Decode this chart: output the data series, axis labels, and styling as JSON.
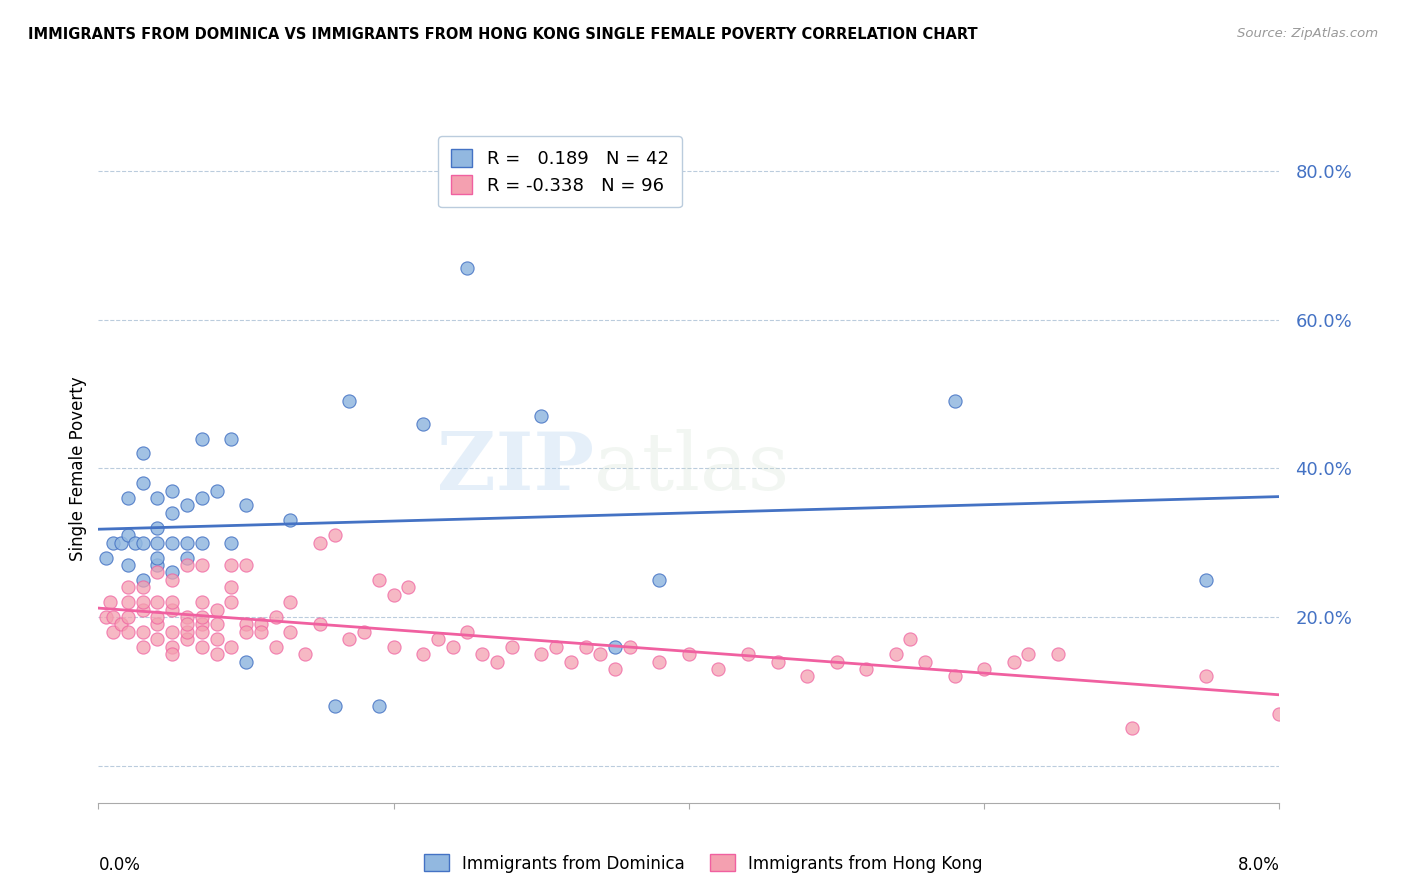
{
  "title": "IMMIGRANTS FROM DOMINICA VS IMMIGRANTS FROM HONG KONG SINGLE FEMALE POVERTY CORRELATION CHART",
  "source": "Source: ZipAtlas.com",
  "ylabel": "Single Female Poverty",
  "xlim": [
    0.0,
    0.08
  ],
  "ylim": [
    -0.05,
    0.85
  ],
  "dominica_R": 0.189,
  "dominica_N": 42,
  "hongkong_R": -0.338,
  "hongkong_N": 96,
  "dominica_color": "#92B8E0",
  "hongkong_color": "#F4A0B0",
  "dominica_line_color": "#4472C4",
  "hongkong_line_color": "#F060A0",
  "dominica_x": [
    0.0005,
    0.001,
    0.0015,
    0.002,
    0.002,
    0.002,
    0.0025,
    0.003,
    0.003,
    0.003,
    0.003,
    0.004,
    0.004,
    0.004,
    0.004,
    0.004,
    0.005,
    0.005,
    0.005,
    0.005,
    0.006,
    0.006,
    0.006,
    0.007,
    0.007,
    0.007,
    0.008,
    0.009,
    0.009,
    0.01,
    0.01,
    0.013,
    0.016,
    0.017,
    0.019,
    0.022,
    0.025,
    0.03,
    0.035,
    0.038,
    0.058,
    0.075
  ],
  "dominica_y": [
    0.28,
    0.3,
    0.3,
    0.27,
    0.31,
    0.36,
    0.3,
    0.25,
    0.3,
    0.38,
    0.42,
    0.27,
    0.32,
    0.36,
    0.3,
    0.28,
    0.26,
    0.34,
    0.3,
    0.37,
    0.28,
    0.35,
    0.3,
    0.36,
    0.44,
    0.3,
    0.37,
    0.44,
    0.3,
    0.35,
    0.14,
    0.33,
    0.08,
    0.49,
    0.08,
    0.46,
    0.67,
    0.47,
    0.16,
    0.25,
    0.49,
    0.25
  ],
  "hongkong_x": [
    0.0005,
    0.0008,
    0.001,
    0.001,
    0.0015,
    0.002,
    0.002,
    0.002,
    0.002,
    0.003,
    0.003,
    0.003,
    0.003,
    0.003,
    0.004,
    0.004,
    0.004,
    0.004,
    0.004,
    0.005,
    0.005,
    0.005,
    0.005,
    0.005,
    0.005,
    0.006,
    0.006,
    0.006,
    0.006,
    0.006,
    0.007,
    0.007,
    0.007,
    0.007,
    0.007,
    0.007,
    0.008,
    0.008,
    0.008,
    0.008,
    0.009,
    0.009,
    0.009,
    0.009,
    0.01,
    0.01,
    0.01,
    0.011,
    0.011,
    0.012,
    0.012,
    0.013,
    0.013,
    0.014,
    0.015,
    0.015,
    0.016,
    0.017,
    0.018,
    0.019,
    0.02,
    0.02,
    0.021,
    0.022,
    0.023,
    0.024,
    0.025,
    0.026,
    0.027,
    0.028,
    0.03,
    0.031,
    0.032,
    0.033,
    0.034,
    0.035,
    0.036,
    0.038,
    0.04,
    0.042,
    0.044,
    0.046,
    0.048,
    0.05,
    0.052,
    0.054,
    0.056,
    0.058,
    0.06,
    0.062,
    0.065,
    0.07,
    0.075,
    0.08,
    0.063,
    0.055
  ],
  "hongkong_y": [
    0.2,
    0.22,
    0.2,
    0.18,
    0.19,
    0.2,
    0.22,
    0.18,
    0.24,
    0.21,
    0.22,
    0.18,
    0.16,
    0.24,
    0.22,
    0.17,
    0.19,
    0.26,
    0.2,
    0.21,
    0.18,
    0.16,
    0.22,
    0.15,
    0.25,
    0.2,
    0.17,
    0.18,
    0.27,
    0.19,
    0.16,
    0.19,
    0.22,
    0.27,
    0.18,
    0.2,
    0.17,
    0.15,
    0.19,
    0.21,
    0.16,
    0.27,
    0.24,
    0.22,
    0.27,
    0.19,
    0.18,
    0.19,
    0.18,
    0.2,
    0.16,
    0.18,
    0.22,
    0.15,
    0.19,
    0.3,
    0.31,
    0.17,
    0.18,
    0.25,
    0.23,
    0.16,
    0.24,
    0.15,
    0.17,
    0.16,
    0.18,
    0.15,
    0.14,
    0.16,
    0.15,
    0.16,
    0.14,
    0.16,
    0.15,
    0.13,
    0.16,
    0.14,
    0.15,
    0.13,
    0.15,
    0.14,
    0.12,
    0.14,
    0.13,
    0.15,
    0.14,
    0.12,
    0.13,
    0.14,
    0.15,
    0.05,
    0.12,
    0.07,
    0.15,
    0.17
  ]
}
